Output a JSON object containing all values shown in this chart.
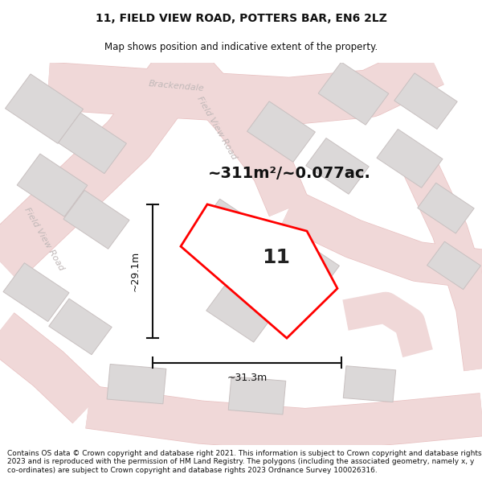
{
  "title": "11, FIELD VIEW ROAD, POTTERS BAR, EN6 2LZ",
  "subtitle": "Map shows position and indicative extent of the property.",
  "area_text": "~311m²/~0.077ac.",
  "property_number": "11",
  "dim_width": "~31.3m",
  "dim_height": "~29.1m",
  "footer_lines": [
    "Contains OS data © Crown copyright and database right 2021. This information is subject to Crown copyright and database rights 2023 and is reproduced with the permission of",
    "HM Land Registry. The polygons (including the associated geometry, namely x, y co-ordinates) are subject to Crown copyright and database rights 2023 Ordnance Survey 100026316."
  ],
  "map_bg": "#f7f4f4",
  "road_color": "#f0d8d8",
  "road_outline_color": "#e8c0c0",
  "building_fill": "#dbd8d8",
  "building_edge": "#c8c0c0",
  "plot_color": "#ff0000",
  "plot_fill": "#ffffff",
  "road_label_color": "#c0b8b8",
  "dim_line_color": "#111111",
  "title_color": "#111111",
  "footer_color": "#111111",
  "title_fontsize": 10,
  "subtitle_fontsize": 8.5,
  "area_fontsize": 14,
  "plot_label_fontsize": 18,
  "dim_fontsize": 9,
  "road_label_fontsize": 8,
  "footer_fontsize": 6.5
}
